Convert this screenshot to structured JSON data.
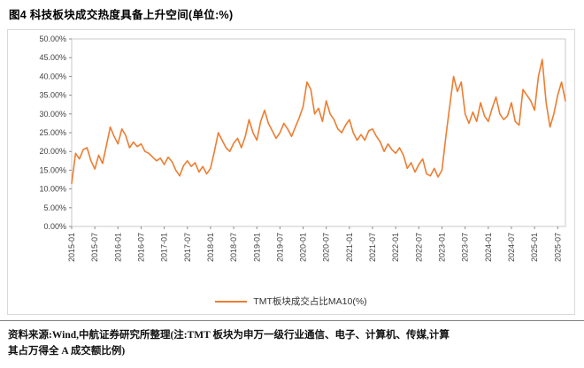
{
  "title": "图4  科技板块成交热度具备上升空间(单位:%)",
  "source": {
    "line1": "资料来源:Wind,中航证券研究所整理(注:TMT 板块为申万一级行业通信、电子、计算机、传媒,计算",
    "line2": "其占万得全 A 成交额比例)"
  },
  "legend": {
    "label": "TMT板块成交占比MA10(%)"
  },
  "chart_data": {
    "type": "line",
    "title": "图4 科技板块成交热度具备上升空间(单位:%)",
    "xlabel": "",
    "ylabel": "",
    "ylim": [
      0,
      50
    ],
    "y_tick_step": 5,
    "y_tick_format": "0.00%",
    "grid": false,
    "legend_position": "bottom",
    "x_start": "2015-01",
    "x_interval_months": 1,
    "x_tick_labels": [
      "2015-01",
      "2015-07",
      "2016-01",
      "2016-07",
      "2017-01",
      "2017-07",
      "2018-01",
      "2018-07",
      "2019-01",
      "2019-07",
      "2020-01",
      "2020-07",
      "2021-01",
      "2021-07",
      "2022-01",
      "2022-07",
      "2023-01",
      "2023-07",
      "2024-01",
      "2024-07",
      "2025-01",
      "2025-07"
    ],
    "series": [
      {
        "name": "TMT板块成交占比MA10(%)",
        "color": "#ED7D31",
        "values": [
          11.5,
          19.5,
          18.0,
          20.5,
          21.0,
          17.5,
          15.3,
          19.0,
          16.8,
          21.5,
          26.5,
          24.0,
          22.0,
          26.0,
          24.3,
          21.0,
          22.5,
          21.3,
          22.0,
          20.0,
          19.5,
          18.5,
          17.5,
          18.2,
          16.5,
          18.5,
          17.3,
          15.0,
          13.5,
          16.2,
          17.5,
          16.0,
          17.0,
          14.5,
          16.0,
          14.0,
          15.5,
          20.0,
          25.0,
          23.0,
          21.0,
          20.0,
          22.2,
          23.5,
          21.0,
          24.0,
          28.5,
          25.0,
          23.0,
          28.0,
          31.0,
          27.5,
          25.5,
          23.5,
          25.0,
          27.5,
          26.0,
          24.0,
          26.5,
          29.0,
          32.0,
          38.5,
          36.5,
          30.0,
          31.5,
          28.0,
          33.5,
          30.0,
          28.5,
          26.0,
          25.0,
          27.0,
          28.5,
          25.0,
          23.0,
          24.5,
          23.0,
          25.5,
          26.0,
          24.0,
          22.5,
          20.0,
          22.0,
          20.5,
          19.5,
          21.0,
          19.0,
          15.5,
          17.0,
          14.5,
          16.5,
          18.0,
          14.0,
          13.5,
          15.5,
          13.2,
          15.0,
          24.0,
          32.0,
          40.0,
          36.0,
          38.5,
          30.0,
          27.5,
          30.5,
          28.0,
          33.0,
          29.5,
          28.0,
          31.5,
          34.5,
          30.0,
          28.5,
          29.5,
          33.0,
          28.0,
          27.0,
          36.5,
          35.0,
          33.5,
          31.0,
          40.0,
          44.5,
          33.0,
          26.5,
          30.0,
          35.0,
          38.5,
          33.5
        ]
      }
    ]
  }
}
